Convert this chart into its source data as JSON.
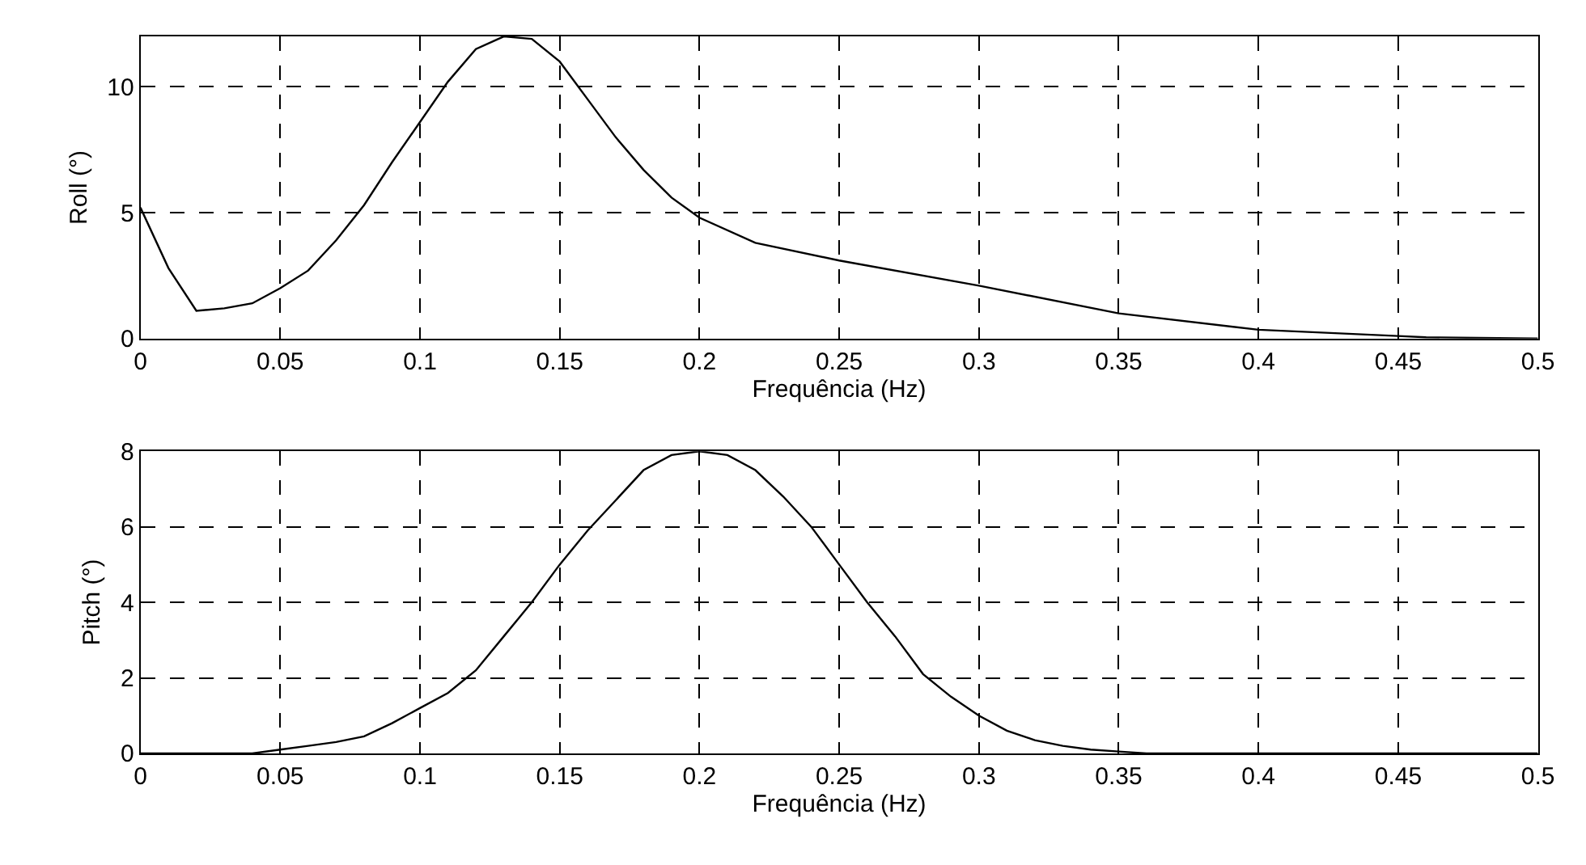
{
  "chart_data": [
    {
      "type": "line",
      "xlabel": "Frequência (Hz)",
      "ylabel": "Roll (°)",
      "xlim": [
        0,
        0.5
      ],
      "xticks": [
        0,
        0.05,
        0.1,
        0.15,
        0.2,
        0.25,
        0.3,
        0.35,
        0.4,
        0.45,
        0.5
      ],
      "ylim": [
        0,
        12
      ],
      "yticks": [
        0,
        5,
        10
      ],
      "grid": true,
      "line_style": "solid",
      "series": [
        {
          "color": "#000000",
          "x": [
            0,
            0.01,
            0.02,
            0.03,
            0.04,
            0.05,
            0.06,
            0.07,
            0.08,
            0.09,
            0.1,
            0.11,
            0.12,
            0.13,
            0.14,
            0.15,
            0.16,
            0.17,
            0.18,
            0.19,
            0.2,
            0.22,
            0.25,
            0.3,
            0.35,
            0.4,
            0.45,
            0.46,
            0.5
          ],
          "values": [
            5.2,
            2.8,
            1.1,
            1.2,
            1.4,
            2.0,
            2.7,
            3.9,
            5.3,
            7.0,
            8.6,
            10.2,
            11.5,
            12.0,
            11.9,
            11.0,
            9.5,
            8.0,
            6.7,
            5.6,
            4.8,
            3.8,
            3.1,
            2.1,
            1.0,
            0.35,
            0.1,
            0.05,
            0
          ]
        }
      ]
    },
    {
      "type": "line",
      "xlabel": "Frequência (Hz)",
      "ylabel": "Pitch (°)",
      "xlim": [
        0,
        0.5
      ],
      "xticks": [
        0,
        0.05,
        0.1,
        0.15,
        0.2,
        0.25,
        0.3,
        0.35,
        0.4,
        0.45,
        0.5
      ],
      "ylim": [
        0,
        8
      ],
      "yticks": [
        0,
        2,
        4,
        6,
        8
      ],
      "grid": true,
      "line_style": "solid",
      "series": [
        {
          "color": "#000000",
          "x": [
            0,
            0.04,
            0.05,
            0.06,
            0.07,
            0.08,
            0.09,
            0.1,
            0.11,
            0.12,
            0.13,
            0.14,
            0.15,
            0.16,
            0.17,
            0.18,
            0.19,
            0.2,
            0.21,
            0.22,
            0.23,
            0.24,
            0.25,
            0.26,
            0.27,
            0.28,
            0.29,
            0.3,
            0.31,
            0.32,
            0.33,
            0.34,
            0.35,
            0.36,
            0.5
          ],
          "values": [
            0,
            0,
            0.1,
            0.2,
            0.3,
            0.45,
            0.8,
            1.2,
            1.6,
            2.2,
            3.1,
            4.0,
            5.0,
            5.9,
            6.7,
            7.5,
            7.9,
            8.0,
            7.9,
            7.5,
            6.8,
            6.0,
            5.0,
            4.0,
            3.1,
            2.1,
            1.5,
            1.0,
            0.6,
            0.35,
            0.2,
            0.1,
            0.05,
            0,
            0
          ]
        }
      ]
    }
  ]
}
